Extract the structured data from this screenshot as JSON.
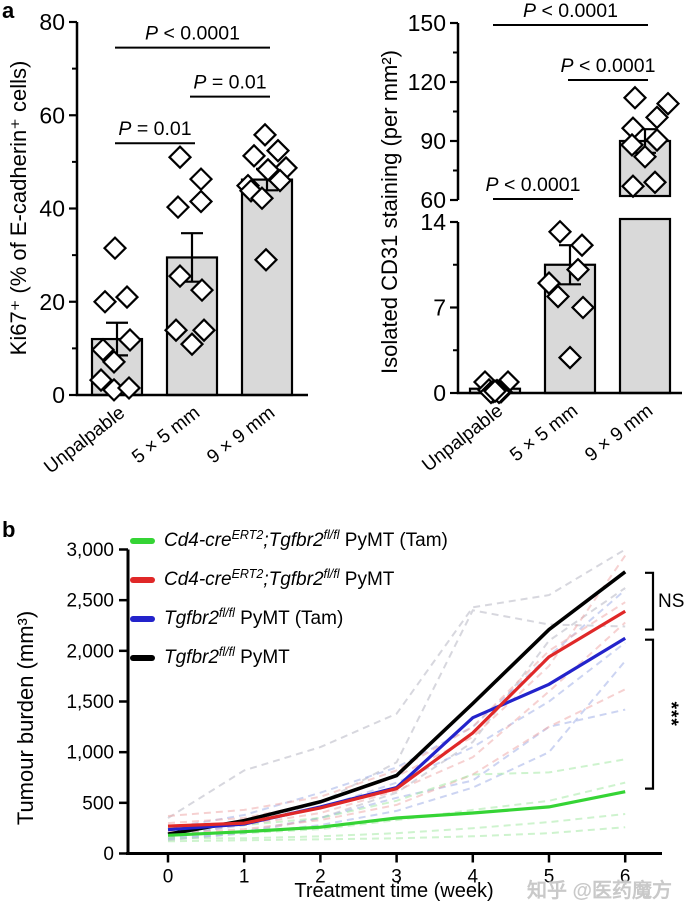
{
  "panels": {
    "a": "a",
    "b": "b"
  },
  "watermark": "知乎 @医药魔方",
  "chart_data": [
    {
      "id": "ki67",
      "type": "bar",
      "title": "",
      "ylabel": "Ki67⁺ (% of E-cadherin⁺ cells)",
      "categories": [
        "Unpalpable",
        "5 × 5 mm",
        "9 × 9 mm"
      ],
      "means": [
        12,
        29.5,
        46.2
      ],
      "sem": [
        3.5,
        5.2,
        2.3
      ],
      "bar_fill": "#d9d9d9",
      "segments": [
        {
          "ylim": [
            0,
            80
          ],
          "yticks": [
            0,
            20,
            40,
            60,
            80
          ],
          "ytick_labels": [
            "0",
            "20",
            "40",
            "60",
            "80"
          ],
          "minor_ticks": [
            10,
            30,
            50,
            70
          ]
        }
      ],
      "points": [
        [
          [
            -2,
            31.5
          ],
          [
            -12,
            20
          ],
          [
            10,
            21
          ],
          [
            13,
            11.8
          ],
          [
            -14,
            9.7
          ],
          [
            -3,
            7.1
          ],
          [
            -16,
            3.2
          ],
          [
            -3,
            1.1
          ],
          [
            12,
            1.5
          ]
        ],
        [
          [
            -12,
            51
          ],
          [
            9,
            46.3
          ],
          [
            -14,
            40.3
          ],
          [
            9,
            41.5
          ],
          [
            -12,
            25.5
          ],
          [
            10,
            22.5
          ],
          [
            -16,
            13.9
          ],
          [
            0,
            10.9
          ],
          [
            12,
            13.9
          ]
        ],
        [
          [
            -2,
            55.8
          ],
          [
            11,
            52.4
          ],
          [
            -13,
            51.3
          ],
          [
            19,
            48.7
          ],
          [
            1,
            48.3
          ],
          [
            13,
            46.0
          ],
          [
            -19,
            44.9
          ],
          [
            -16,
            43.8
          ],
          [
            -5,
            42.2
          ],
          [
            -1,
            29.0
          ]
        ]
      ],
      "significance": [
        {
          "text": "P = 0.01",
          "pair": [
            0,
            1
          ],
          "y": 54
        },
        {
          "text": "P = 0.01",
          "pair": [
            1,
            2
          ],
          "y": 64
        },
        {
          "text": "P < 0.0001",
          "pair": [
            0,
            2
          ],
          "y": 74.5
        }
      ]
    },
    {
      "id": "cd31",
      "type": "bar",
      "title": "",
      "ylabel": "Isolated CD31 staining (per mm²)",
      "categories": [
        "Unpalpable",
        "5 × 5 mm",
        "9 × 9 mm"
      ],
      "means": [
        0.35,
        10.5,
        90
      ],
      "sem": [
        0.25,
        1.6,
        6
      ],
      "bar_fill": "#d9d9d9",
      "segments": [
        {
          "ylim": [
            0,
            14
          ],
          "yticks": [
            0,
            7,
            14
          ],
          "ytick_labels": [
            "0",
            "7",
            "14"
          ],
          "minor_ticks": [
            3.5,
            10.5
          ]
        },
        {
          "ylim": [
            60,
            150
          ],
          "yticks": [
            60,
            90,
            120,
            150
          ],
          "ytick_labels": [
            "60",
            "90",
            "120",
            "150"
          ],
          "minor_ticks": [
            75,
            105,
            135
          ]
        }
      ],
      "points": [
        [
          [
            -10,
            0.9
          ],
          [
            13,
            0.9
          ],
          [
            -6,
            0.25
          ],
          [
            -2,
            0.1
          ],
          [
            2,
            0.2
          ],
          [
            6,
            0.1
          ],
          [
            -4,
            0.05
          ],
          [
            4,
            0.05
          ],
          [
            0,
            0.15
          ]
        ],
        [
          [
            -10,
            13.2
          ],
          [
            12,
            12.1
          ],
          [
            8,
            10.1
          ],
          [
            -21,
            9.0
          ],
          [
            -12,
            7.9
          ],
          [
            13,
            7.0
          ],
          [
            0,
            2.9
          ]
        ],
        [
          [
            -10,
            112
          ],
          [
            23,
            109
          ],
          [
            12,
            102
          ],
          [
            -12,
            96.5
          ],
          [
            12,
            90.5
          ],
          [
            -13,
            88
          ],
          [
            0,
            82
          ],
          [
            -12,
            67
          ],
          [
            10,
            69
          ]
        ]
      ],
      "significance": [
        {
          "text": "P < 0.0001",
          "pair": [
            0,
            1
          ],
          "y": 60.5
        },
        {
          "text": "P < 0.0001",
          "pair": [
            1,
            2
          ],
          "y": 121
        },
        {
          "text": "P < 0.0001",
          "pair": [
            0,
            2
          ],
          "y": 149
        }
      ]
    },
    {
      "id": "tumour-burden",
      "type": "line",
      "title": "",
      "xlabel": "Treatment time (week)",
      "ylabel": "Tumour burden (mm³)",
      "x": [
        0,
        1,
        2,
        3,
        4,
        5,
        6
      ],
      "xtick_labels": [
        "0",
        "1",
        "2",
        "3",
        "4",
        "5",
        "6"
      ],
      "ylim": [
        0,
        3000
      ],
      "yticks": [
        0,
        500,
        1000,
        1500,
        2000,
        2500,
        3000
      ],
      "ytick_labels": [
        "0",
        "500",
        "1,000",
        "1,500",
        "2,000",
        "2,500",
        "3,000"
      ],
      "legend_position": "top-left",
      "series": [
        {
          "name": "Cd4-creERT2;Tgfbr2fl/fl PyMT (Tam)",
          "color": "#35d435",
          "values": [
            180,
            215,
            260,
            350,
            400,
            460,
            610
          ],
          "name_parts": [
            {
              "t": "Cd4-cre",
              "i": true
            },
            {
              "t": "ERT2",
              "i": true,
              "s": true
            },
            {
              "t": ";",
              "i": true
            },
            {
              "t": "Tgfbr2",
              "i": true
            },
            {
              "t": "fl/fl",
              "i": true,
              "s": true
            },
            {
              "t": " PyMT (Tam)",
              "i": false
            }
          ]
        },
        {
          "name": "Cd4-creERT2;Tgfbr2fl/fl PyMT",
          "color": "#e02828",
          "values": [
            270,
            300,
            450,
            640,
            1190,
            1940,
            2390
          ],
          "name_parts": [
            {
              "t": "Cd4-cre",
              "i": true
            },
            {
              "t": "ERT2",
              "i": true,
              "s": true
            },
            {
              "t": ";",
              "i": true
            },
            {
              "t": "Tgfbr2",
              "i": true
            },
            {
              "t": "fl/fl",
              "i": true,
              "s": true
            },
            {
              "t": " PyMT",
              "i": false
            }
          ]
        },
        {
          "name": "Tgfbr2fl/fl PyMT (Tam)",
          "color": "#2323cb",
          "values": [
            235,
            290,
            460,
            650,
            1340,
            1670,
            2125
          ],
          "name_parts": [
            {
              "t": "Tgfbr2",
              "i": true
            },
            {
              "t": "fl/fl",
              "i": true,
              "s": true
            },
            {
              "t": " PyMT (Tam)",
              "i": false
            }
          ]
        },
        {
          "name": "Tgfbr2fl/fl PyMT",
          "color": "#000000",
          "values": [
            190,
            325,
            510,
            770,
            1480,
            2210,
            2780
          ],
          "name_parts": [
            {
              "t": "Tgfbr2",
              "i": true
            },
            {
              "t": "fl/fl",
              "i": true,
              "s": true
            },
            {
              "t": " PyMT",
              "i": false
            }
          ]
        }
      ],
      "individual_series": [
        {
          "color": "#b6b6c2",
          "values": [
            350,
            820,
            1050,
            1380,
            2430,
            2550,
            3000
          ]
        },
        {
          "color": "#b6b6c2",
          "values": [
            150,
            300,
            500,
            900,
            2400,
            2260,
            2240
          ]
        },
        {
          "color": "#b6b6c2",
          "values": [
            130,
            200,
            350,
            600,
            1100,
            2100,
            2620
          ]
        },
        {
          "color": "#a2b0e8",
          "values": [
            250,
            380,
            600,
            850,
            1250,
            1950,
            2600
          ]
        },
        {
          "color": "#a2b0e8",
          "values": [
            180,
            280,
            450,
            700,
            1050,
            1500,
            2080
          ]
        },
        {
          "color": "#a2b0e8",
          "values": [
            150,
            220,
            350,
            550,
            720,
            1250,
            1420
          ]
        },
        {
          "color": "#a2b0e8",
          "values": [
            140,
            200,
            280,
            420,
            650,
            1000,
            1900
          ]
        },
        {
          "color": "#eeacac",
          "values": [
            370,
            430,
            560,
            820,
            1250,
            2000,
            2480
          ]
        },
        {
          "color": "#eeacac",
          "values": [
            300,
            350,
            500,
            760,
            1150,
            1850,
            2940
          ]
        },
        {
          "color": "#eeacac",
          "values": [
            220,
            280,
            400,
            620,
            950,
            1600,
            2280
          ]
        },
        {
          "color": "#eeacac",
          "values": [
            200,
            240,
            330,
            480,
            780,
            1250,
            1620
          ]
        },
        {
          "color": "#a6e9a6",
          "values": [
            250,
            280,
            350,
            520,
            780,
            800,
            930
          ]
        },
        {
          "color": "#a6e9a6",
          "values": [
            180,
            200,
            240,
            330,
            430,
            520,
            700
          ]
        },
        {
          "color": "#a6e9a6",
          "values": [
            150,
            150,
            170,
            200,
            250,
            310,
            390
          ]
        },
        {
          "color": "#a6e9a6",
          "values": [
            120,
            130,
            140,
            150,
            170,
            200,
            260
          ]
        }
      ],
      "annotations": [
        {
          "text": "NS",
          "y_top": 2770,
          "y_bottom": 2210,
          "rotated": false
        },
        {
          "text": "***",
          "y_top": 2110,
          "y_bottom": 640,
          "rotated": true
        }
      ]
    }
  ]
}
